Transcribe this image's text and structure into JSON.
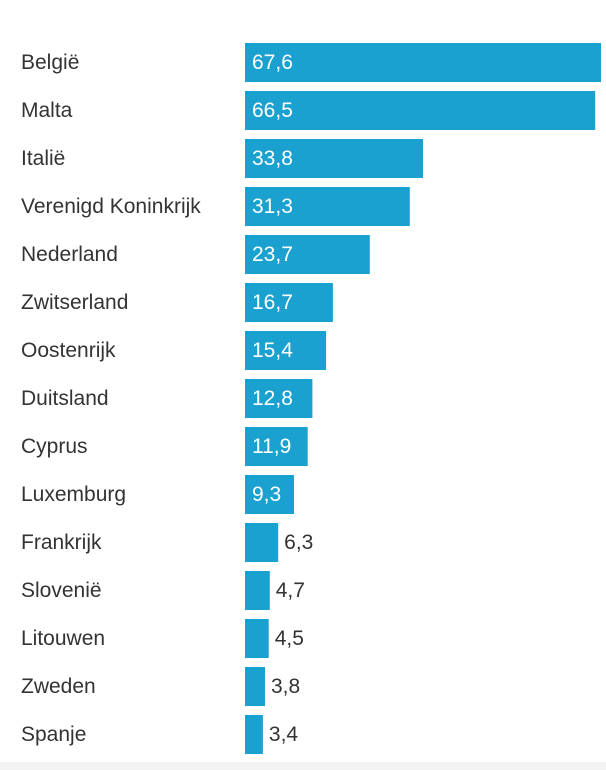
{
  "colors": {
    "bar": "#1aa1cf",
    "label_text": "#333333",
    "value_inside": "#ffffff",
    "value_outside": "#333333",
    "background": "#ffffff"
  },
  "chart_data": {
    "type": "bar",
    "orientation": "horizontal",
    "categories": [
      "België",
      "Malta",
      "Italië",
      "Verenigd Koninkrijk",
      "Nederland",
      "Zwitserland",
      "Oostenrijk",
      "Duitsland",
      "Cyprus",
      "Luxemburg",
      "Frankrijk",
      "Slovenië",
      "Litouwen",
      "Zweden",
      "Spanje"
    ],
    "values": [
      67.6,
      66.5,
      33.8,
      31.3,
      23.7,
      16.7,
      15.4,
      12.8,
      11.9,
      9.3,
      6.3,
      4.7,
      4.5,
      3.8,
      3.4
    ],
    "value_labels": [
      "67,6",
      "66,5",
      "33,8",
      "31,3",
      "23,7",
      "16,7",
      "15,4",
      "12,8",
      "11,9",
      "9,3",
      "6,3",
      "4,7",
      "4,5",
      "3,8",
      "3,4"
    ],
    "title": "",
    "xlabel": "",
    "ylabel": "",
    "xlim": [
      0,
      67.6
    ],
    "grid": false,
    "legend": "none",
    "data_labels": "inside-end for long bars, outside for short bars"
  }
}
